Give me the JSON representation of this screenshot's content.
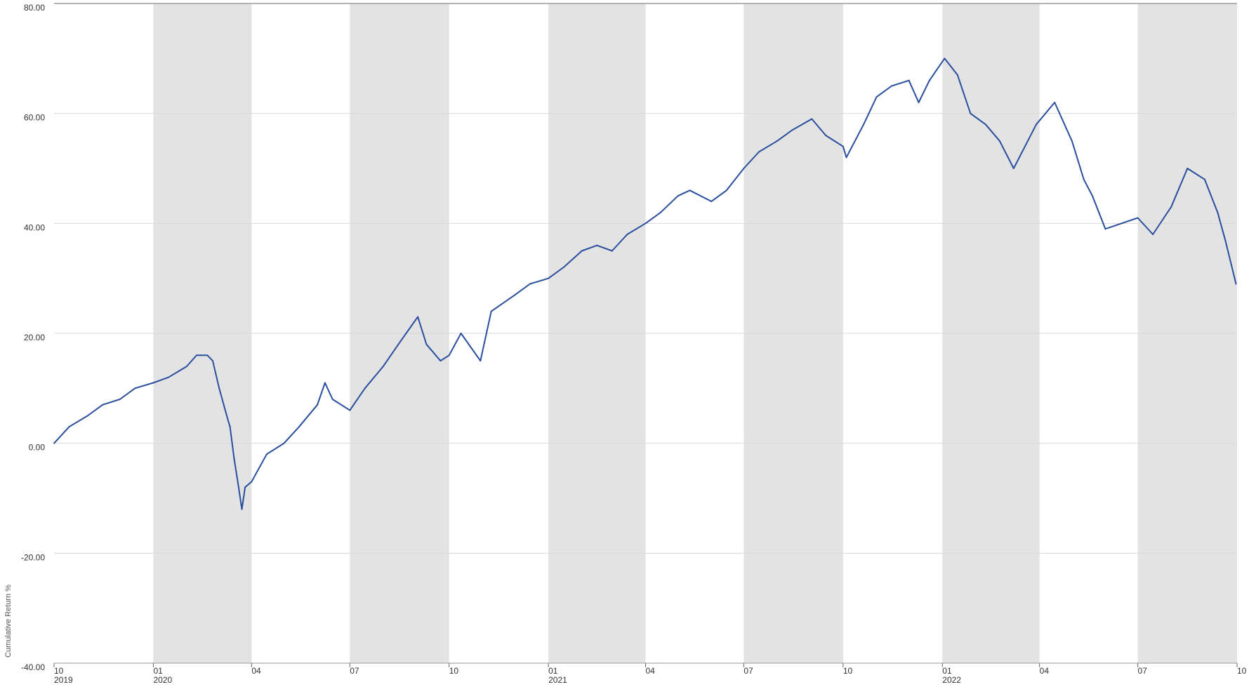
{
  "chart_data": {
    "type": "line",
    "title": "",
    "xlabel": "",
    "ylabel": "Cumulative Return %",
    "ylim": [
      -40,
      80
    ],
    "y_ticks": [
      "80.00",
      "60.00",
      "40.00",
      "20.00",
      "0.00",
      "-20.00",
      "-40.00"
    ],
    "x_range": [
      "2019-10-01",
      "2022-10-01"
    ],
    "x_ticks": [
      {
        "date": "2019-10-01",
        "month": "10",
        "year": "2019"
      },
      {
        "date": "2020-01-01",
        "month": "01",
        "year": "2020"
      },
      {
        "date": "2020-04-01",
        "month": "04",
        "year": ""
      },
      {
        "date": "2020-07-01",
        "month": "07",
        "year": ""
      },
      {
        "date": "2020-10-01",
        "month": "10",
        "year": ""
      },
      {
        "date": "2021-01-01",
        "month": "01",
        "year": "2021"
      },
      {
        "date": "2021-04-01",
        "month": "04",
        "year": ""
      },
      {
        "date": "2021-07-01",
        "month": "07",
        "year": ""
      },
      {
        "date": "2021-10-01",
        "month": "10",
        "year": ""
      },
      {
        "date": "2022-01-01",
        "month": "01",
        "year": "2022"
      },
      {
        "date": "2022-04-01",
        "month": "04",
        "year": ""
      },
      {
        "date": "2022-07-01",
        "month": "07",
        "year": ""
      },
      {
        "date": "2022-10-01",
        "month": "10",
        "year": ""
      }
    ],
    "shaded_quarters": [
      [
        "2020-01-01",
        "2020-04-01"
      ],
      [
        "2020-07-01",
        "2020-10-01"
      ],
      [
        "2021-01-01",
        "2021-04-01"
      ],
      [
        "2021-07-01",
        "2021-10-01"
      ],
      [
        "2022-01-01",
        "2022-04-01"
      ],
      [
        "2022-07-01",
        "2022-10-01"
      ]
    ],
    "grid": true,
    "legend": "none",
    "colors": {
      "line": "#2a4e9e",
      "band": "#e3e3e3",
      "grid": "#d9d9d9",
      "axis": "#9a9a9a"
    },
    "series": [
      {
        "x": [
          "2019-10-01",
          "2019-10-15",
          "2019-11-01",
          "2019-11-15",
          "2019-12-01",
          "2019-12-15",
          "2020-01-01",
          "2020-01-15",
          "2020-02-01",
          "2020-02-10",
          "2020-02-20",
          "2020-02-25",
          "2020-03-02",
          "2020-03-09",
          "2020-03-12",
          "2020-03-16",
          "2020-03-20",
          "2020-03-23",
          "2020-03-26",
          "2020-04-01",
          "2020-04-15",
          "2020-05-01",
          "2020-05-15",
          "2020-06-01",
          "2020-06-08",
          "2020-06-15",
          "2020-07-01",
          "2020-07-15",
          "2020-08-01",
          "2020-08-15",
          "2020-09-02",
          "2020-09-10",
          "2020-09-23",
          "2020-10-01",
          "2020-10-12",
          "2020-10-30",
          "2020-11-09",
          "2020-12-01",
          "2020-12-15",
          "2021-01-01",
          "2021-01-15",
          "2021-02-01",
          "2021-02-15",
          "2021-03-01",
          "2021-03-15",
          "2021-04-01",
          "2021-04-15",
          "2021-05-01",
          "2021-05-12",
          "2021-06-01",
          "2021-06-15",
          "2021-07-01",
          "2021-07-15",
          "2021-08-01",
          "2021-08-15",
          "2021-09-02",
          "2021-09-15",
          "2021-10-01",
          "2021-10-04",
          "2021-10-20",
          "2021-11-01",
          "2021-11-15",
          "2021-12-01",
          "2021-12-10",
          "2021-12-20",
          "2022-01-03",
          "2022-01-15",
          "2022-01-27",
          "2022-02-10",
          "2022-02-23",
          "2022-03-08",
          "2022-03-29",
          "2022-04-15",
          "2022-05-01",
          "2022-05-12",
          "2022-05-20",
          "2022-06-01",
          "2022-06-16",
          "2022-07-01",
          "2022-07-15",
          "2022-08-01",
          "2022-08-16",
          "2022-09-01",
          "2022-09-13",
          "2022-09-20",
          "2022-09-30"
        ],
        "values": [
          0,
          3,
          5,
          7,
          8,
          10,
          11,
          12,
          14,
          16,
          16,
          15,
          10,
          5,
          3,
          -3,
          -8,
          -12,
          -8,
          -7,
          -2,
          0,
          3,
          7,
          11,
          8,
          6,
          10,
          14,
          18,
          23,
          18,
          15,
          16,
          20,
          15,
          24,
          27,
          29,
          30,
          32,
          35,
          36,
          35,
          38,
          40,
          42,
          45,
          46,
          44,
          46,
          50,
          53,
          55,
          57,
          59,
          56,
          54,
          52,
          58,
          63,
          65,
          66,
          62,
          66,
          70,
          67,
          60,
          58,
          55,
          50,
          58,
          62,
          55,
          48,
          45,
          39,
          40,
          41,
          38,
          43,
          50,
          48,
          42,
          37,
          29
        ]
      }
    ]
  }
}
